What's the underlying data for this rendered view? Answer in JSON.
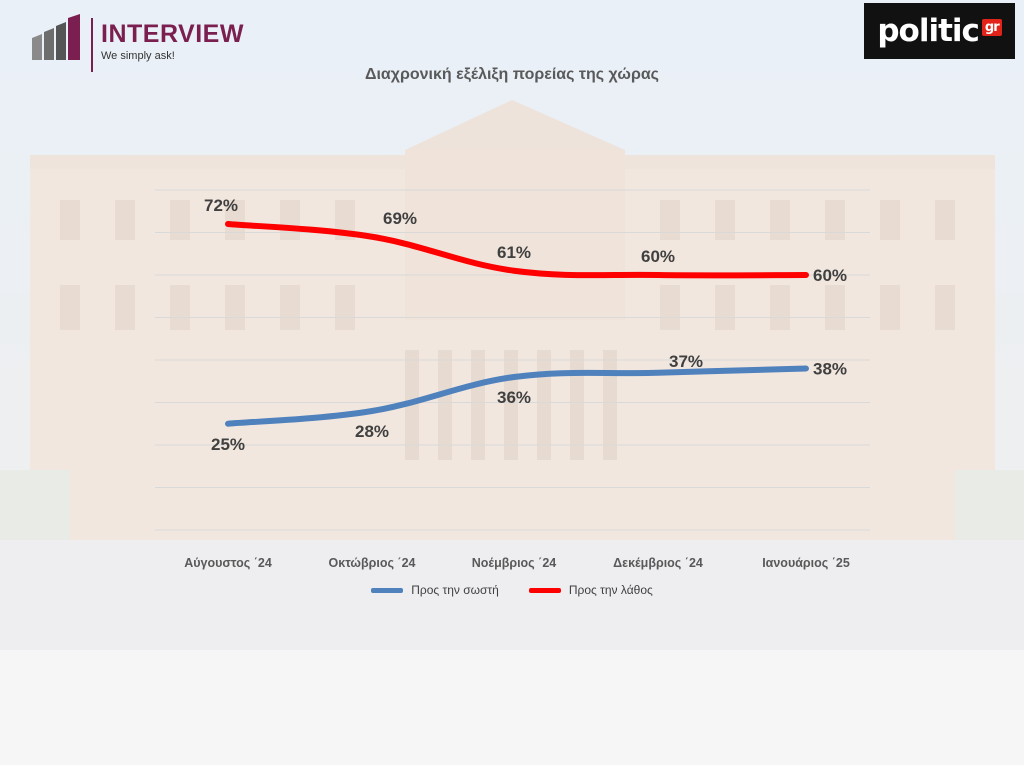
{
  "header": {
    "brand_name": "INTERVIEW",
    "brand_tagline": "We simply ask!",
    "brand_color": "#7a1f4f",
    "partner_logo_text": "politic",
    "partner_logo_suffix": "gr"
  },
  "chart_data": {
    "type": "line",
    "title": "Διαχρονική εξέλιξη πορείας της χώρας",
    "categories": [
      "Αύγουστος ΄24",
      "Οκτώβριος ΄24",
      "Νοέμβριος ΄24",
      "Δεκέμβριος ΄24",
      "Ιανουάριος ΄25"
    ],
    "series": [
      {
        "name": "Προς την σωστή",
        "values": [
          25,
          28,
          36,
          37,
          38
        ],
        "labels": [
          "25%",
          "28%",
          "36%",
          "37%",
          "38%"
        ],
        "color": "#4f81bd"
      },
      {
        "name": "Προς την λάθος",
        "values": [
          72,
          69,
          61,
          60,
          60
        ],
        "labels": [
          "72%",
          "69%",
          "61%",
          "60%",
          "60%"
        ],
        "color": "#ff0000"
      }
    ],
    "ylim": [
      0,
      80
    ],
    "grid": true,
    "legend_position": "bottom",
    "xlabel": "",
    "ylabel": ""
  }
}
